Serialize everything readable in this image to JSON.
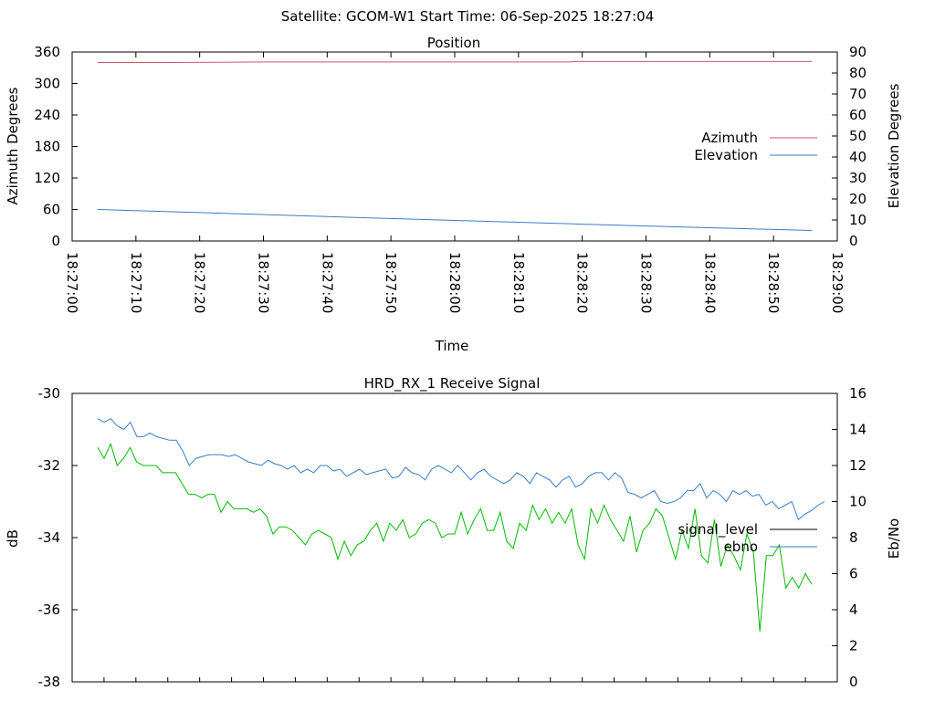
{
  "header": {
    "title": "Satellite: GCOM-W1    Start Time: 06-Sep-2025 18:27:04"
  },
  "chart_data": [
    {
      "type": "line",
      "title": "Position",
      "xlabel": "Time",
      "ylabel": "Azimuth Degrees",
      "y2label": "Elevation Degrees",
      "x_ticks": [
        "18:27:00",
        "18:27:10",
        "18:27:20",
        "18:27:30",
        "18:27:40",
        "18:27:50",
        "18:28:00",
        "18:28:10",
        "18:28:20",
        "18:28:30",
        "18:28:40",
        "18:28:50",
        "18:29:00"
      ],
      "xlim": [
        "18:27:00",
        "18:29:00"
      ],
      "ylim": [
        0,
        360
      ],
      "y_ticks": [
        0,
        60,
        120,
        180,
        240,
        300,
        360
      ],
      "y2lim": [
        0,
        90
      ],
      "y2_ticks": [
        0,
        10,
        20,
        30,
        40,
        50,
        60,
        70,
        80,
        90
      ],
      "legend_position": "right",
      "series": [
        {
          "name": "Azimuth",
          "axis": "y",
          "color": "#cc5566",
          "x": [
            "18:27:04",
            "18:27:15",
            "18:27:30",
            "18:27:45",
            "18:28:00",
            "18:28:18",
            "18:28:19",
            "18:28:35",
            "18:28:56"
          ],
          "values": [
            340,
            340,
            341,
            341,
            341,
            341,
            342,
            342,
            342
          ]
        },
        {
          "name": "Elevation",
          "axis": "y2",
          "color": "#3a7bc8",
          "x": [
            "18:27:04",
            "18:27:20",
            "18:27:40",
            "18:28:00",
            "18:28:20",
            "18:28:40",
            "18:28:56"
          ],
          "values": [
            15,
            13.5,
            11.6,
            9.8,
            8,
            6.3,
            5
          ]
        }
      ]
    },
    {
      "type": "line",
      "title": "HRD_RX_1 Receive Signal",
      "xlabel": "",
      "ylabel": "dB",
      "y2label": "Eb/No",
      "ylim": [
        -38,
        -30
      ],
      "y_ticks": [
        -38,
        -36,
        -34,
        -32,
        -30
      ],
      "y2lim": [
        0,
        16
      ],
      "y2_ticks": [
        0,
        2,
        4,
        6,
        8,
        10,
        12,
        14,
        16
      ],
      "xlim": [
        "18:27:00",
        "18:29:00"
      ],
      "legend_position": "right",
      "series": [
        {
          "name": "signal_level",
          "axis": "y",
          "color": "#00bb00",
          "x_start": "18:27:04",
          "x_end": "18:28:56",
          "values": [
            -31.5,
            -31.8,
            -31.4,
            -32.0,
            -31.8,
            -31.5,
            -31.9,
            -32.0,
            -32.0,
            -32.0,
            -32.2,
            -32.2,
            -32.2,
            -32.5,
            -32.8,
            -32.8,
            -32.9,
            -32.8,
            -32.8,
            -33.3,
            -33.0,
            -33.2,
            -33.2,
            -33.2,
            -33.3,
            -33.2,
            -33.4,
            -33.9,
            -33.7,
            -33.7,
            -33.8,
            -34.0,
            -34.2,
            -33.9,
            -33.8,
            -33.9,
            -34.0,
            -34.6,
            -34.1,
            -34.5,
            -34.2,
            -34.1,
            -33.8,
            -33.6,
            -34.1,
            -33.6,
            -33.8,
            -33.5,
            -34.0,
            -33.9,
            -33.6,
            -33.5,
            -33.6,
            -34.0,
            -33.9,
            -33.9,
            -33.3,
            -33.9,
            -33.5,
            -33.2,
            -33.8,
            -33.8,
            -33.3,
            -34.1,
            -34.3,
            -33.6,
            -33.8,
            -33.1,
            -33.5,
            -33.2,
            -33.6,
            -33.3,
            -33.6,
            -33.2,
            -34.2,
            -34.6,
            -33.2,
            -33.6,
            -33.1,
            -33.5,
            -33.8,
            -34.1,
            -33.4,
            -34.4,
            -33.8,
            -33.6,
            -33.2,
            -33.4,
            -34.0,
            -34.6,
            -33.8,
            -34.3,
            -33.2,
            -34.5,
            -34.7,
            -33.5,
            -34.8,
            -34.2,
            -34.5,
            -34.9,
            -33.9,
            -34.4,
            -36.6,
            -34.5,
            -34.5,
            -34.2,
            -35.4,
            -35.1,
            -35.4,
            -35.0,
            -35.3
          ]
        },
        {
          "name": "ebno",
          "axis": "y2",
          "color": "#3a7bc8",
          "x_start": "18:27:04",
          "x_end": "18:28:58",
          "values": [
            14.6,
            14.4,
            14.6,
            14.2,
            14.0,
            14.4,
            13.6,
            13.6,
            13.8,
            13.6,
            13.5,
            13.4,
            13.4,
            12.8,
            12.0,
            12.4,
            12.5,
            12.6,
            12.6,
            12.6,
            12.5,
            12.6,
            12.4,
            12.2,
            12.1,
            12.0,
            12.3,
            12.1,
            12.0,
            11.8,
            12.0,
            11.6,
            11.8,
            11.6,
            12.0,
            12.0,
            11.7,
            11.8,
            11.4,
            11.6,
            11.8,
            11.5,
            11.6,
            11.7,
            11.8,
            11.3,
            11.4,
            11.9,
            11.6,
            11.5,
            11.2,
            11.8,
            12.0,
            11.8,
            11.6,
            12.0,
            11.6,
            11.2,
            11.6,
            11.8,
            11.4,
            11.2,
            11.0,
            11.2,
            11.6,
            11.4,
            11.0,
            11.6,
            11.4,
            11.2,
            10.8,
            11.2,
            11.4,
            10.8,
            11.0,
            11.4,
            11.6,
            11.6,
            11.2,
            11.6,
            11.3,
            10.5,
            10.4,
            10.2,
            10.4,
            10.6,
            10.0,
            9.9,
            10.0,
            10.2,
            10.6,
            10.6,
            11.0,
            10.2,
            10.6,
            10.4,
            10.0,
            10.6,
            10.4,
            10.6,
            10.3,
            10.4,
            9.8,
            10.0,
            9.6,
            9.8,
            10.0,
            9.0,
            9.3,
            9.5,
            9.8,
            10.0
          ]
        }
      ]
    }
  ]
}
